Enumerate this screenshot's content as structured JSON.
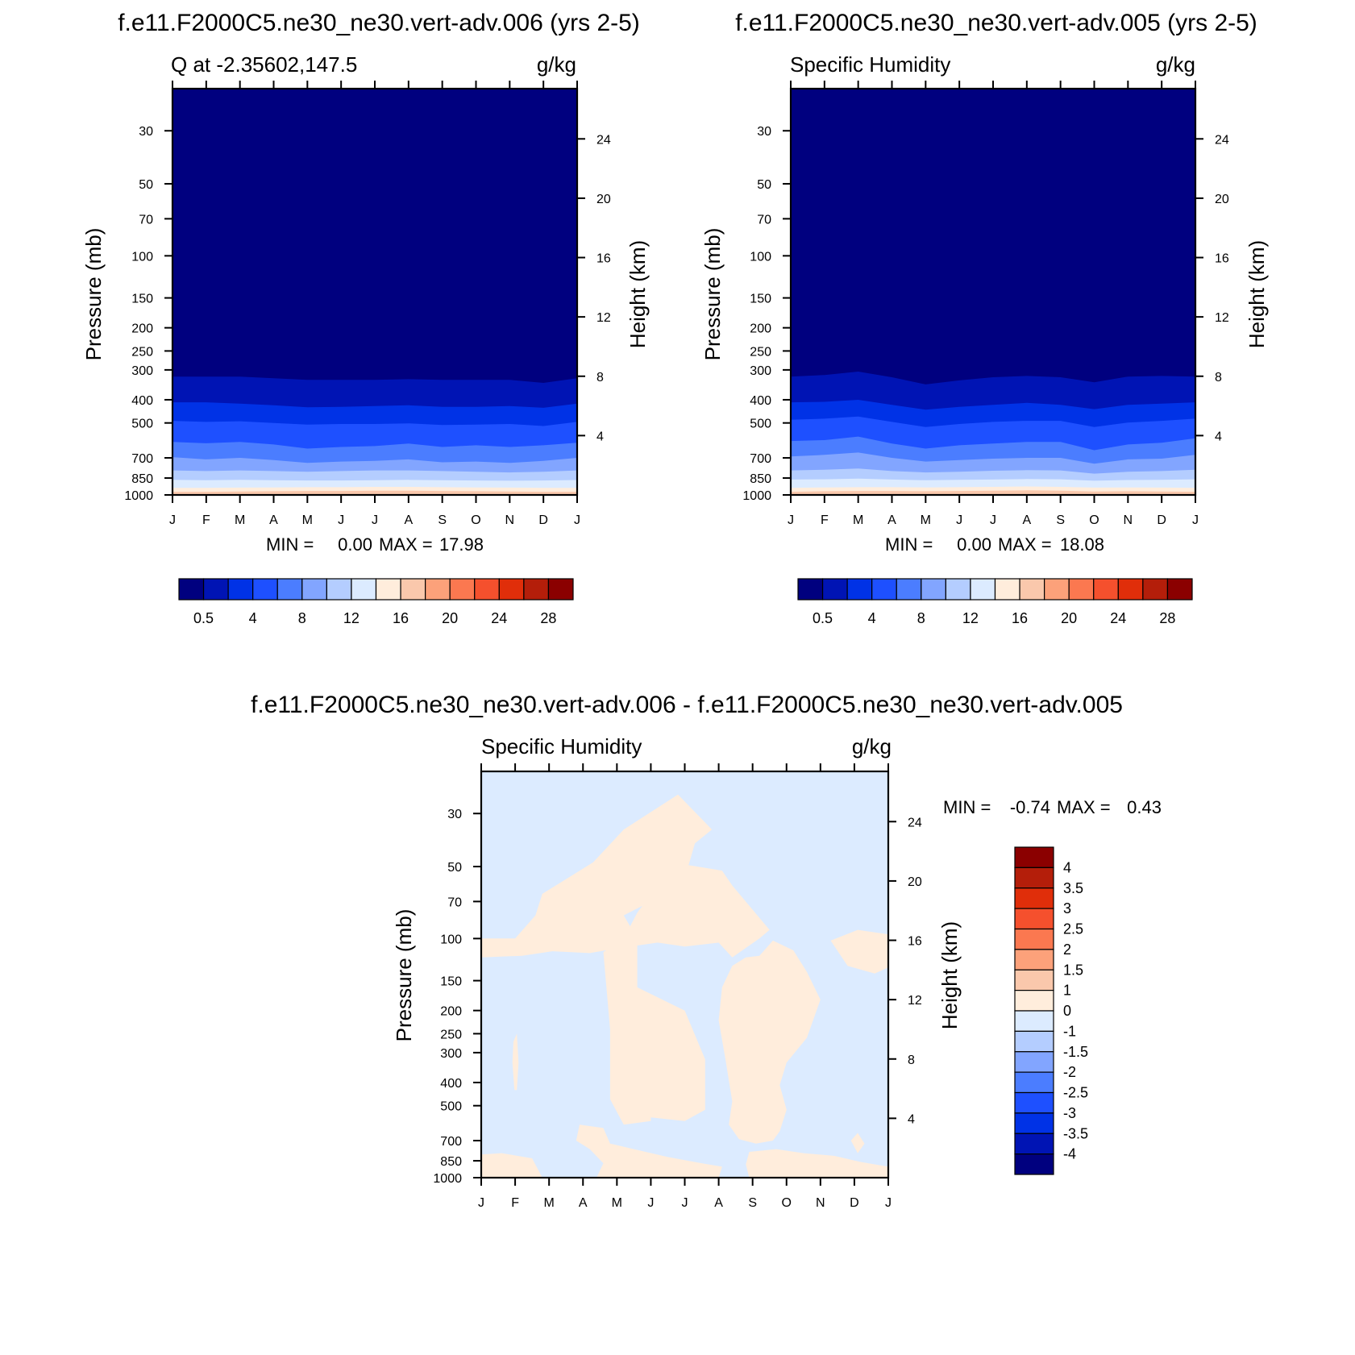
{
  "chart_data": [
    {
      "type": "heatmap",
      "panel_title": "f.e11.F2000C5.ne30_ne30.vert-adv.006 (yrs 2-5)",
      "left_string": "Q at -2.35602,147.5",
      "right_string": "g/kg",
      "xlabel": "",
      "ylabel": "Pressure (mb)",
      "ylabel_right": "Height (km)",
      "x_tick_labels": [
        "J",
        "F",
        "M",
        "A",
        "M",
        "J",
        "J",
        "A",
        "S",
        "O",
        "N",
        "D",
        "J"
      ],
      "y_ticks": [
        30,
        50,
        70,
        100,
        150,
        200,
        250,
        300,
        400,
        500,
        700,
        850,
        1000
      ],
      "ylim": [
        1000,
        20
      ],
      "yscale": "log",
      "y_right_ticks": [
        24,
        20,
        16,
        12,
        8,
        4
      ],
      "stats": {
        "min_label": "MIN =",
        "min": "0.00",
        "max_label": "MAX =",
        "max": "17.98"
      },
      "contour_levels": [
        0.5,
        2,
        4,
        6,
        8,
        10,
        12,
        14,
        16,
        18,
        20,
        22,
        24,
        26,
        28
      ],
      "colorbar_labels": [
        "0.5",
        "4",
        "8",
        "12",
        "16",
        "20",
        "24",
        "28"
      ],
      "boundaries_mb": [
        [
          320,
          320,
          320,
          325,
          330,
          330,
          330,
          328,
          330,
          330,
          330,
          340,
          325
        ],
        [
          410,
          410,
          415,
          422,
          430,
          428,
          425,
          422,
          428,
          428,
          425,
          432,
          415
        ],
        [
          490,
          495,
          492,
          500,
          508,
          505,
          505,
          502,
          510,
          508,
          505,
          515,
          495
        ],
        [
          600,
          608,
          600,
          615,
          640,
          630,
          625,
          610,
          630,
          620,
          630,
          620,
          605
        ],
        [
          695,
          710,
          700,
          715,
          735,
          725,
          720,
          710,
          730,
          725,
          735,
          720,
          700
        ],
        [
          790,
          795,
          790,
          795,
          800,
          795,
          790,
          790,
          795,
          800,
          805,
          800,
          790
        ],
        [
          865,
          868,
          865,
          868,
          870,
          870,
          868,
          865,
          868,
          870,
          872,
          870,
          866
        ],
        [
          935,
          935,
          932,
          930,
          928,
          928,
          925,
          925,
          928,
          930,
          932,
          935,
          935
        ]
      ],
      "series_colors": [
        "#00007f",
        "#0014b4",
        "#0032e6",
        "#1e50ff",
        "#4b7dff",
        "#82a5ff",
        "#b4cdff",
        "#dcebff",
        "#ffeddc",
        "#fac8ac"
      ]
    },
    {
      "type": "heatmap",
      "panel_title": "f.e11.F2000C5.ne30_ne30.vert-adv.005 (yrs 2-5)",
      "left_string": "Specific Humidity",
      "right_string": "g/kg",
      "xlabel": "",
      "ylabel": "Pressure (mb)",
      "ylabel_right": "Height (km)",
      "x_tick_labels": [
        "J",
        "F",
        "M",
        "A",
        "M",
        "J",
        "J",
        "A",
        "S",
        "O",
        "N",
        "D",
        "J"
      ],
      "y_ticks": [
        30,
        50,
        70,
        100,
        150,
        200,
        250,
        300,
        400,
        500,
        700,
        850,
        1000
      ],
      "ylim": [
        1000,
        20
      ],
      "yscale": "log",
      "y_right_ticks": [
        24,
        20,
        16,
        12,
        8,
        4
      ],
      "stats": {
        "min_label": "MIN =",
        "min": "0.00",
        "max_label": "MAX =",
        "max": "18.08"
      },
      "contour_levels": [
        0.5,
        2,
        4,
        6,
        8,
        10,
        12,
        14,
        16,
        18,
        20,
        22,
        24,
        26,
        28
      ],
      "colorbar_labels": [
        "0.5",
        "4",
        "8",
        "12",
        "16",
        "20",
        "24",
        "28"
      ],
      "boundaries_mb": [
        [
          320,
          315,
          305,
          322,
          345,
          332,
          322,
          318,
          322,
          338,
          320,
          318,
          320
        ],
        [
          410,
          408,
          400,
          420,
          440,
          428,
          420,
          412,
          420,
          438,
          420,
          415,
          410
        ],
        [
          485,
          480,
          470,
          495,
          520,
          505,
          495,
          490,
          490,
          520,
          498,
          490,
          480
        ],
        [
          595,
          590,
          570,
          610,
          640,
          620,
          610,
          600,
          600,
          650,
          615,
          605,
          580
        ],
        [
          690,
          680,
          665,
          700,
          725,
          715,
          705,
          700,
          700,
          740,
          710,
          705,
          680
        ],
        [
          790,
          785,
          775,
          795,
          805,
          800,
          792,
          788,
          790,
          815,
          800,
          795,
          785
        ],
        [
          862,
          860,
          855,
          862,
          868,
          865,
          862,
          858,
          860,
          872,
          866,
          864,
          860
        ],
        [
          935,
          930,
          928,
          928,
          930,
          928,
          925,
          922,
          925,
          932,
          930,
          932,
          935
        ]
      ],
      "series_colors": [
        "#00007f",
        "#0014b4",
        "#0032e6",
        "#1e50ff",
        "#4b7dff",
        "#82a5ff",
        "#b4cdff",
        "#dcebff",
        "#ffeddc",
        "#fac8ac"
      ]
    },
    {
      "type": "heatmap",
      "panel_title": "f.e11.F2000C5.ne30_ne30.vert-adv.006 - f.e11.F2000C5.ne30_ne30.vert-adv.005",
      "left_string": "Specific Humidity",
      "right_string": "g/kg",
      "xlabel": "",
      "ylabel": "Pressure (mb)",
      "ylabel_right": "Height (km)",
      "x_tick_labels": [
        "J",
        "F",
        "M",
        "A",
        "M",
        "J",
        "J",
        "A",
        "S",
        "O",
        "N",
        "D",
        "J"
      ],
      "y_ticks": [
        30,
        50,
        70,
        100,
        150,
        200,
        250,
        300,
        400,
        500,
        700,
        850,
        1000
      ],
      "ylim": [
        1000,
        20
      ],
      "yscale": "log",
      "y_right_ticks": [
        24,
        20,
        16,
        12,
        8,
        4
      ],
      "stats": {
        "min_label": "MIN =",
        "min": "-0.74",
        "max_label": "MAX =",
        "max": "0.43"
      },
      "contour_levels": [
        -4,
        -3.5,
        -3,
        -2.5,
        -2,
        -1.5,
        -1,
        0,
        1,
        1.5,
        2,
        2.5,
        3,
        3.5,
        4
      ],
      "colorbar_labels": [
        "4",
        "3.5",
        "3",
        "2.5",
        "2",
        "1.5",
        "1",
        "0",
        "-1",
        "-1.5",
        "-2",
        "-2.5",
        "-3",
        "-3.5",
        "-4"
      ],
      "background_value_range": [
        -1,
        0
      ],
      "positive_regions": [
        [
          [
            0,
            120
          ],
          [
            1.2,
            118
          ],
          [
            2.1,
            113
          ],
          [
            3.2,
            115
          ],
          [
            4.0,
            110
          ],
          [
            5.2,
            104
          ],
          [
            6,
            108
          ],
          [
            7,
            104
          ],
          [
            7.4,
            120
          ],
          [
            8.2,
            100
          ],
          [
            8.5,
            92
          ],
          [
            7.4,
            60
          ],
          [
            7.1,
            52
          ],
          [
            5.6,
            48
          ],
          [
            5.5,
            52
          ],
          [
            5.2,
            60
          ],
          [
            4.6,
            78
          ],
          [
            4.2,
            100
          ],
          [
            3.6,
            114
          ],
          [
            3.8,
            240
          ],
          [
            3.8,
            470
          ],
          [
            4.2,
            600
          ],
          [
            5,
            580
          ],
          [
            5,
            560
          ],
          [
            6,
            580
          ],
          [
            6.6,
            520
          ],
          [
            6.6,
            320
          ],
          [
            6,
            200
          ],
          [
            4.6,
            160
          ],
          [
            4.6,
            100
          ],
          [
            4.2,
            80
          ],
          [
            5,
            70
          ],
          [
            5.2,
            64
          ],
          [
            6,
            56
          ],
          [
            6.3,
            40
          ],
          [
            6.8,
            35
          ],
          [
            5.8,
            25
          ],
          [
            4.2,
            35
          ],
          [
            3.3,
            48
          ],
          [
            2.2,
            60
          ],
          [
            1.8,
            65
          ],
          [
            1.6,
            80
          ],
          [
            1,
            100
          ],
          [
            0,
            100
          ]
        ]
      ]
    }
  ],
  "colorbar_colors_full": [
    "#00007f",
    "#0014b4",
    "#0032e6",
    "#1e50ff",
    "#4b7dff",
    "#82a5ff",
    "#b4cdff",
    "#dcebff",
    "#ffeddc",
    "#fac8ac",
    "#fca17a",
    "#fb7850",
    "#f5502d",
    "#e02e0a",
    "#b41e0a",
    "#8b0000"
  ]
}
